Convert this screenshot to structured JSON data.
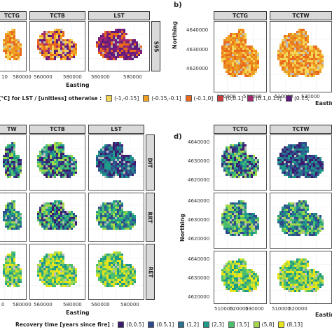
{
  "sections": {
    "b": "b)",
    "d": "d)"
  },
  "top_left": {
    "strips": [
      "TCTG",
      "TCTB",
      "LST"
    ],
    "row_strip": "S95",
    "x_ticks": [
      "10",
      "580000",
      "560000",
      "580000",
      "560000",
      "580000"
    ],
    "x_title": "Easting"
  },
  "top_right": {
    "strips": [
      "TCTG",
      "TCTW"
    ],
    "y_ticks": [
      "4640000",
      "4630000",
      "4620000"
    ],
    "y_title": "Northing",
    "x_ticks": [
      "510000",
      "530000",
      "510000",
      "530000"
    ],
    "x_title": "Eastin"
  },
  "legend_top": {
    "title": "[°C] for LST / [unitless] otherwise :",
    "items": [
      {
        "label": "(-1,-0.15]",
        "color": "#f3d55a"
      },
      {
        "label": "(-0.15,-0.1]",
        "color": "#f0a123"
      },
      {
        "label": "(-0.1,0]",
        "color": "#e96a1d"
      },
      {
        "label": "(0,0.1]",
        "color": "#cf3b3b"
      },
      {
        "label": "(0.1,0.15]",
        "color": "#a12a6e"
      },
      {
        "label": "(0.15,",
        "color": "#5e1a7d"
      }
    ]
  },
  "bottom_left": {
    "strips": [
      "TW",
      "TCTB",
      "LST"
    ],
    "row_strips": [
      "DIT",
      "RRT",
      "RET"
    ],
    "x_ticks": [
      "0",
      "580000",
      "560000",
      "580000",
      "560000",
      "580000"
    ],
    "x_title": "Easting"
  },
  "bottom_right": {
    "strips": [
      "TCTG",
      "TCTW"
    ],
    "y_ticks": [
      "4640000",
      "4630000",
      "4620000",
      "4640000",
      "4630000",
      "4620000",
      "4640000",
      "4630000",
      "4620000"
    ],
    "y_title": "Northing",
    "x_ticks": [
      "510000",
      "520000",
      "530000",
      "510000",
      "520000"
    ],
    "x_title": "Eastin"
  },
  "legend_bottom": {
    "title": "Recovery time  [years since fire] :",
    "items": [
      {
        "label": "(0,0.5]",
        "color": "#3b1c6e"
      },
      {
        "label": "(0.5,1]",
        "color": "#2f4a8c"
      },
      {
        "label": "(1,2]",
        "color": "#2a6f8e"
      },
      {
        "label": "(2,3]",
        "color": "#1f9a8a"
      },
      {
        "label": "(3,5]",
        "color": "#4bbf6b"
      },
      {
        "label": "(5,8]",
        "color": "#a3d84a"
      },
      {
        "label": "(8,13]",
        "color": "#e7e419"
      }
    ]
  }
}
